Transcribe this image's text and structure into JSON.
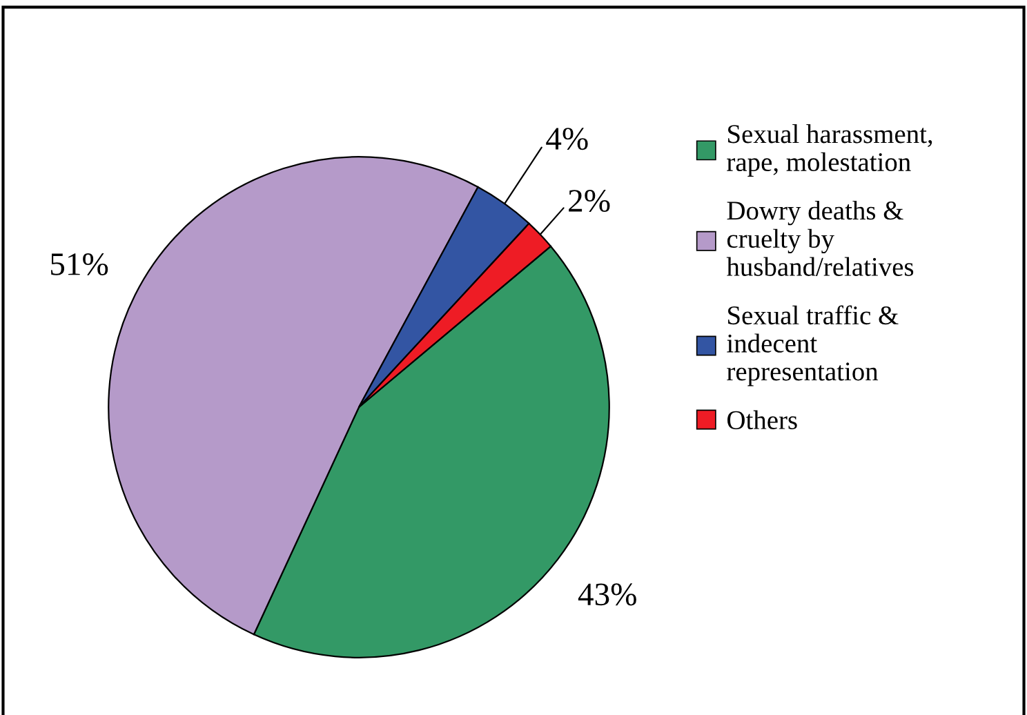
{
  "chart_data": {
    "type": "pie",
    "categories": [
      "Sexual harassment,\nrape, molestation",
      "Dowry deaths &\ncruelty by\nhusband/relatives",
      "Sexual traffic &\nindecent\nrepresentation",
      "Others"
    ],
    "values": [
      43,
      51,
      4,
      2
    ],
    "colors": [
      "#339966",
      "#b59ac9",
      "#3355a3",
      "#ee1c25"
    ],
    "value_labels": [
      "43%",
      "51%",
      "4%",
      "2%"
    ],
    "legend": "right"
  }
}
